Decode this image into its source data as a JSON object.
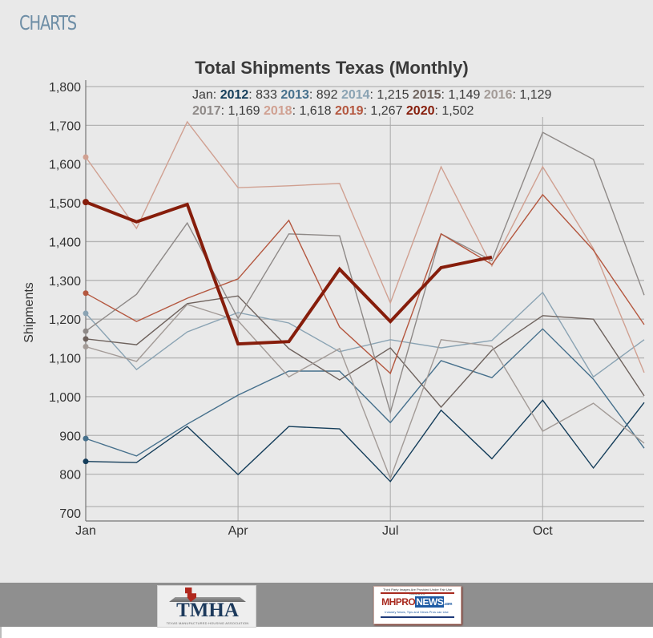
{
  "page": {
    "section_title": "CHARTS"
  },
  "chart_data": {
    "type": "line",
    "title": "Total Shipments Texas (Monthly)",
    "xlabel": "",
    "ylabel": "Shipments",
    "x": [
      "Jan",
      "Feb",
      "Mar",
      "Apr",
      "May",
      "Jun",
      "Jul",
      "Aug",
      "Sep",
      "Oct",
      "Nov",
      "Dec"
    ],
    "x_tick_labels": [
      {
        "label": "Jan",
        "month_index": 0
      },
      {
        "label": "Apr",
        "month_index": 3
      },
      {
        "label": "Jul",
        "month_index": 6
      },
      {
        "label": "Oct",
        "month_index": 9
      }
    ],
    "y_ticks": [
      "1,800",
      "1,700",
      "1,600",
      "1,500",
      "1,400",
      "1,300",
      "1,200",
      "1,100",
      "1,000",
      "900",
      "800",
      "700"
    ],
    "y_tick_values": [
      1800,
      1700,
      1600,
      1500,
      1400,
      1300,
      1200,
      1100,
      1000,
      900,
      800,
      700
    ],
    "ylim": [
      700,
      1800
    ],
    "grid": true,
    "legend": {
      "placement": "top",
      "prefix": "Jan:",
      "line1": [
        {
          "year": "2012",
          "value": "833"
        },
        {
          "year": "2013",
          "value": "892"
        },
        {
          "year": "2014",
          "value": "1,215"
        },
        {
          "year": "2015",
          "value": "1,149"
        },
        {
          "year": "2016",
          "value": "1,129"
        }
      ],
      "line2": [
        {
          "year": "2017",
          "value": "1,169"
        },
        {
          "year": "2018",
          "value": "1,618"
        },
        {
          "year": "2019",
          "value": "1,267"
        },
        {
          "year": "2020",
          "value": "1,502"
        }
      ]
    },
    "series": [
      {
        "name": "2012",
        "color": "#143d5a",
        "bold": false,
        "values": [
          833,
          830,
          923,
          799,
          923,
          917,
          781,
          965,
          840,
          991,
          816,
          985
        ]
      },
      {
        "name": "2013",
        "color": "#46708c",
        "bold": false,
        "values": [
          892,
          847,
          929,
          1004,
          1066,
          1066,
          933,
          1093,
          1049,
          1175,
          1045,
          867
        ]
      },
      {
        "name": "2014",
        "color": "#8aa3b3",
        "bold": false,
        "values": [
          1215,
          1070,
          1167,
          1217,
          1190,
          1116,
          1147,
          1126,
          1145,
          1269,
          1051,
          1147
        ]
      },
      {
        "name": "2015",
        "color": "#6e625d",
        "bold": false,
        "values": [
          1149,
          1134,
          1240,
          1260,
          1124,
          1043,
          1126,
          973,
          1120,
          1209,
          1200,
          1002
        ]
      },
      {
        "name": "2016",
        "color": "#a39b97",
        "bold": false,
        "values": [
          1129,
          1091,
          1238,
          1196,
          1051,
          1124,
          789,
          1147,
          1130,
          911,
          983,
          880
        ]
      },
      {
        "name": "2017",
        "color": "#8e8987",
        "bold": false,
        "values": [
          1169,
          1264,
          1448,
          1202,
          1420,
          1415,
          960,
          1420,
          1351,
          1682,
          1612,
          1262
        ]
      },
      {
        "name": "2018",
        "color": "#d0a091",
        "bold": false,
        "values": [
          1618,
          1434,
          1709,
          1539,
          1544,
          1550,
          1242,
          1593,
          1337,
          1593,
          1382,
          1062
        ]
      },
      {
        "name": "2019",
        "color": "#b4573f",
        "bold": false,
        "values": [
          1267,
          1194,
          1254,
          1304,
          1455,
          1180,
          1060,
          1420,
          1341,
          1521,
          1378,
          1186
        ]
      },
      {
        "name": "2020",
        "color": "#861d0b",
        "bold": true,
        "values": [
          1502,
          1451,
          1496,
          1136,
          1142,
          1329,
          1194,
          1333,
          1360
        ]
      }
    ]
  },
  "footer": {
    "logo_left": {
      "name": "TMHA",
      "subtitle": "TEXAS MANUFACTURED HOUSING ASSOCIATION"
    },
    "logo_right": {
      "top_text": "Third Party Images Are Provided Under Fair Use Guidelines.",
      "brand_mh": "MHPRO",
      "brand_news": "NEWS",
      "brand_com": ".com",
      "tagline": "Industry News, Tips and Views Pros can Use"
    }
  }
}
